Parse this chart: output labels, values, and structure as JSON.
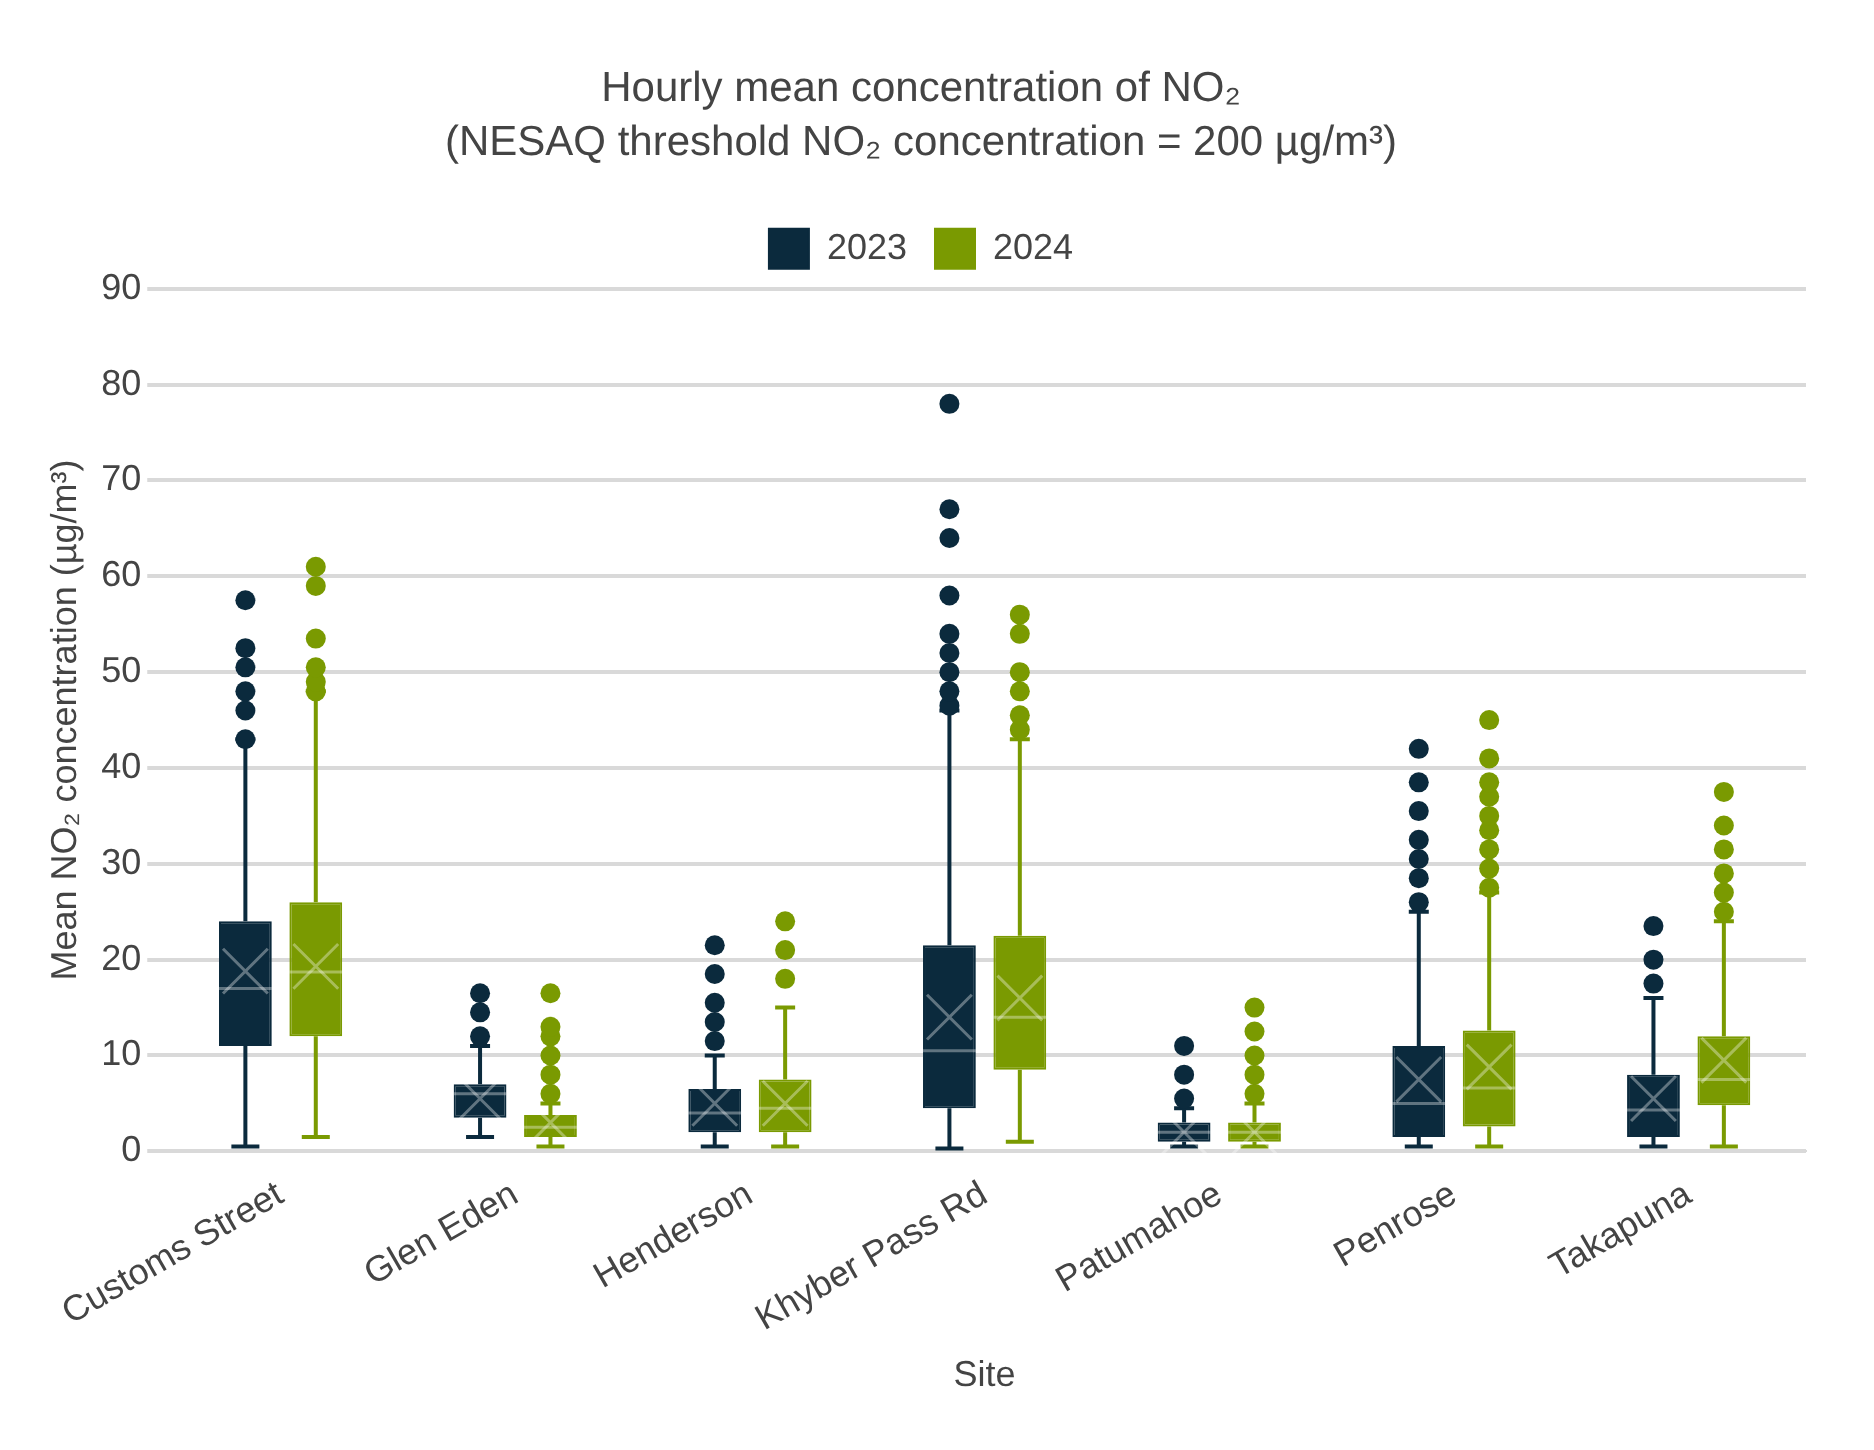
{
  "chart_data": {
    "type": "box",
    "title": "Hourly mean concentration of NO₂",
    "subtitle": "(NESAQ threshold NO₂ concentration = 200 µg/m³)",
    "xlabel": "Site",
    "ylabel": "Mean NO₂ concentration (µg/m³)",
    "categories": [
      "Customs Street",
      "Glen Eden",
      "Henderson",
      "Khyber Pass Rd",
      "Patumahoe",
      "Penrose",
      "Takapuna"
    ],
    "ylim": [
      0,
      90
    ],
    "yticks": [
      0,
      10,
      20,
      30,
      40,
      50,
      60,
      70,
      80,
      90
    ],
    "grid": "y",
    "legend": "top",
    "series": [
      {
        "name": "2023",
        "color": "#0b2a3d",
        "boxes": [
          {
            "low": 0.5,
            "q1": 11,
            "median": 17,
            "q3": 24,
            "high": 43,
            "mean": 18.8,
            "outliers": [
              43,
              46,
              48,
              50.5,
              52.5,
              57.5
            ]
          },
          {
            "low": 1.5,
            "q1": 3.5,
            "median": 6,
            "q3": 7,
            "high": 11,
            "mean": 5.5,
            "outliers": [
              12,
              14.5,
              16.5
            ]
          },
          {
            "low": 0.5,
            "q1": 2,
            "median": 4,
            "q3": 6.5,
            "high": 10,
            "mean": 5,
            "outliers": [
              11.5,
              13.5,
              15.5,
              18.5,
              21.5
            ]
          },
          {
            "low": 0.3,
            "q1": 4.5,
            "median": 10.5,
            "q3": 21.5,
            "high": 46,
            "mean": 14,
            "outliers": [
              46.5,
              48,
              50,
              52,
              54,
              58,
              64,
              67,
              78
            ]
          },
          {
            "low": 0.5,
            "q1": 1,
            "median": 2,
            "q3": 3,
            "high": 4.5,
            "mean": 2,
            "outliers": [
              5.5,
              8,
              11
            ]
          },
          {
            "low": 0.5,
            "q1": 1.5,
            "median": 5,
            "q3": 11,
            "high": 25,
            "mean": 7.5,
            "outliers": [
              26,
              28.5,
              30.5,
              32.5,
              35.5,
              38.5,
              42
            ]
          },
          {
            "low": 0.5,
            "q1": 1.5,
            "median": 4.3,
            "q3": 8,
            "high": 16,
            "mean": 5.5,
            "outliers": [
              17.5,
              20,
              23.5
            ]
          }
        ]
      },
      {
        "name": "2024",
        "color": "#7a9a01",
        "boxes": [
          {
            "low": 1.5,
            "q1": 12,
            "median": 18.7,
            "q3": 26,
            "high": 48,
            "mean": 19.3,
            "outliers": [
              48,
              49,
              50.5,
              53.5,
              59,
              61
            ]
          },
          {
            "low": 0.5,
            "q1": 1.5,
            "median": 2.5,
            "q3": 3.8,
            "high": 5,
            "mean": 3,
            "outliers": [
              6,
              8,
              10,
              12,
              13,
              16.5
            ]
          },
          {
            "low": 0.5,
            "q1": 2,
            "median": 4.5,
            "q3": 7.5,
            "high": 15,
            "mean": 5,
            "outliers": [
              18,
              21,
              24
            ]
          },
          {
            "low": 1,
            "q1": 8.5,
            "median": 14,
            "q3": 22.5,
            "high": 43,
            "mean": 16,
            "outliers": [
              44,
              45.5,
              48,
              50,
              54,
              56
            ]
          },
          {
            "low": 0.5,
            "q1": 1,
            "median": 2,
            "q3": 3,
            "high": 5,
            "mean": 2,
            "outliers": [
              6,
              8,
              10,
              12.5,
              15
            ]
          },
          {
            "low": 0.5,
            "q1": 2.6,
            "median": 6.6,
            "q3": 12.6,
            "high": 27,
            "mean": 8.8,
            "outliers": [
              27.5,
              29.5,
              31.5,
              33.5,
              35,
              37,
              38.5,
              41,
              45
            ]
          },
          {
            "low": 0.5,
            "q1": 4.8,
            "median": 7.5,
            "q3": 12,
            "high": 24,
            "mean": 9.5,
            "outliers": [
              25,
              27,
              29,
              31.5,
              34,
              37.5
            ]
          }
        ]
      }
    ]
  }
}
